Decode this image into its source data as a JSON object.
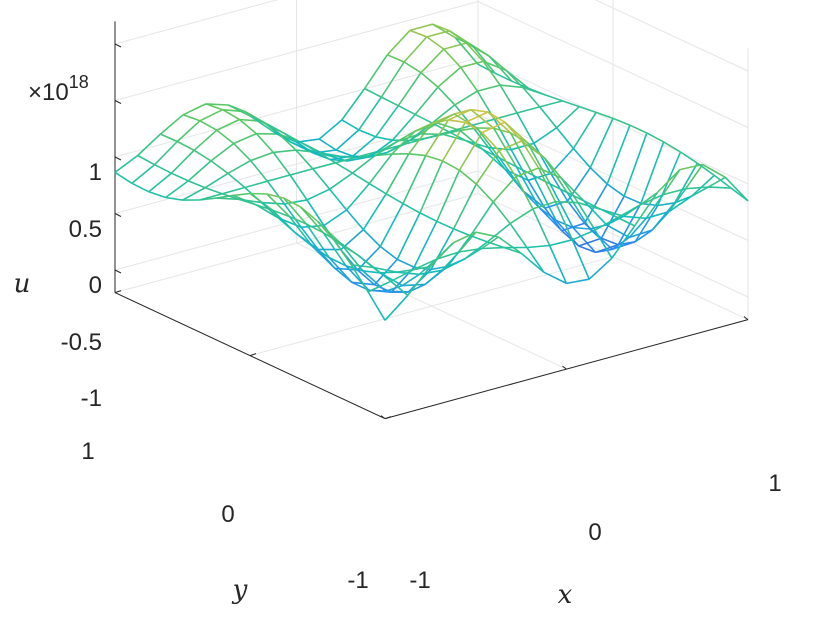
{
  "chart_data": {
    "type": "surface-mesh",
    "title": "",
    "xlabel": "x",
    "ylabel": "y",
    "zlabel": "u",
    "xlim": [
      -1,
      1
    ],
    "ylim": [
      -1,
      1
    ],
    "zlim": [
      -1.2,
      1.2
    ],
    "z_multiplier": "×10",
    "z_exponent": "18",
    "x_ticks": [
      "-1",
      "0",
      "1"
    ],
    "y_ticks": [
      "-1",
      "0",
      "1"
    ],
    "z_ticks": [
      "-1",
      "-0.5",
      "0",
      "0.5",
      "1"
    ],
    "z_tick_values": [
      -1,
      -0.5,
      0,
      0.5,
      1
    ],
    "grid": true,
    "colormap": "parula",
    "mesh_points": 17,
    "surface_note": "oscillating sine-like surface; amplitude grows toward y=-1 and along x; peaks ≈ 1.0 and troughs ≈ -1.1"
  }
}
